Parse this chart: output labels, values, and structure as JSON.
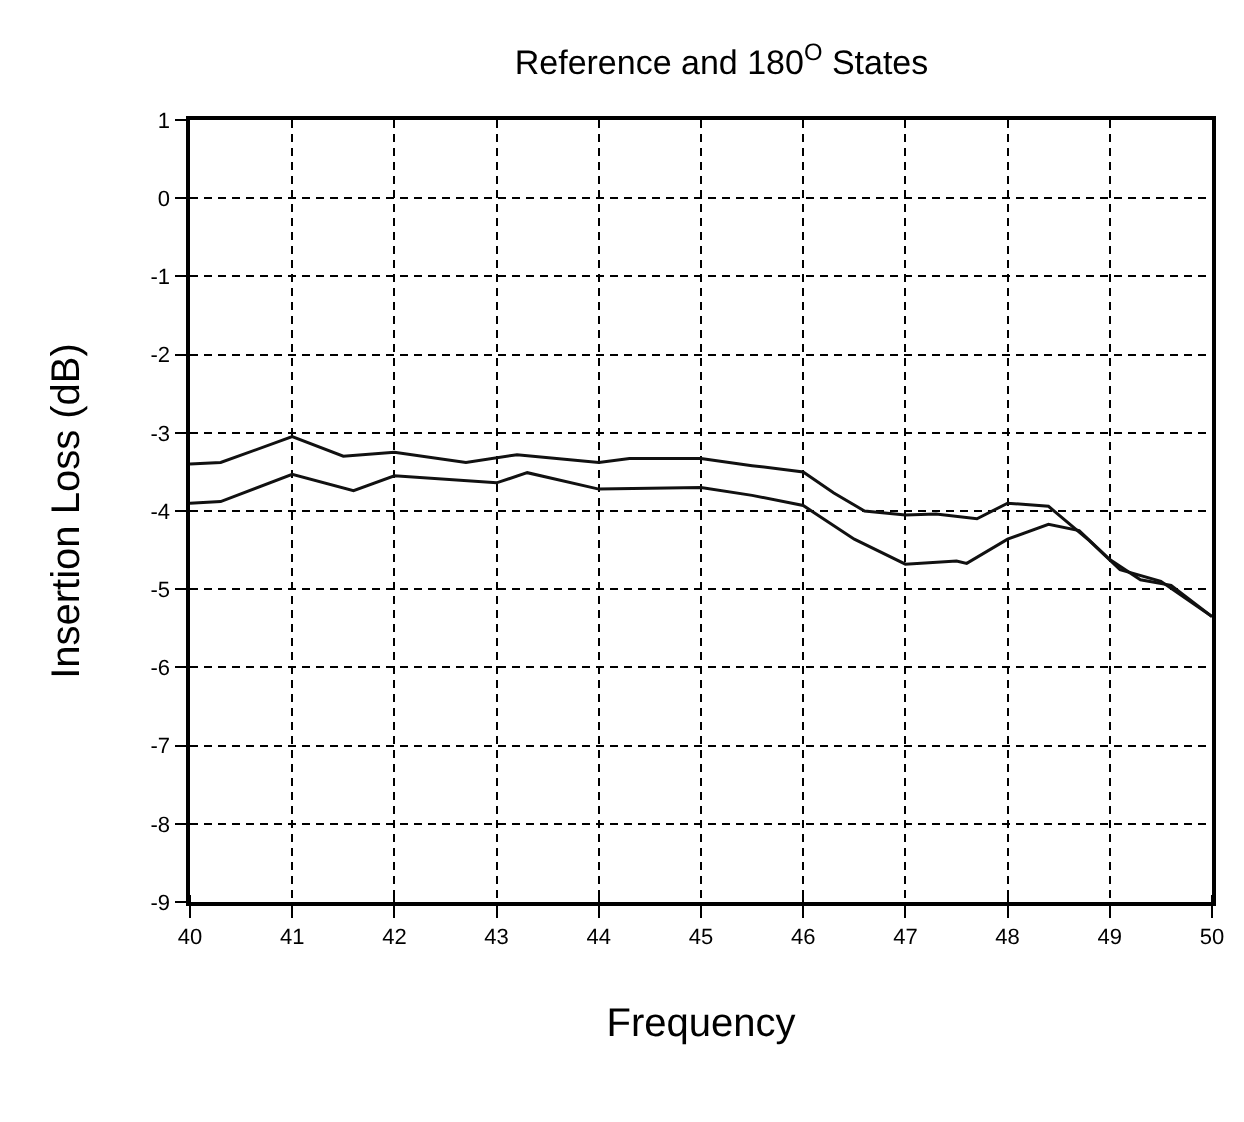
{
  "chart_data": {
    "type": "line",
    "title": "Reference and 180$^{O}$ States",
    "xlabel": "Frequency",
    "ylabel": "Insertion Loss (dB)",
    "series": [
      {
        "color": "#111111",
        "x": [
          40,
          40.3,
          41,
          41.5,
          42,
          42.7,
          43.2,
          44,
          44.3,
          45,
          45.5,
          46,
          46.3,
          46.6,
          47,
          47.3,
          47.7,
          48,
          48.4,
          48.8,
          49.1,
          49.5,
          50
        ],
        "values": [
          -3.4,
          -3.38,
          -3.05,
          -3.3,
          -3.25,
          -3.38,
          -3.28,
          -3.38,
          -3.33,
          -3.33,
          -3.42,
          -3.5,
          -3.77,
          -4.0,
          -4.05,
          -4.04,
          -4.1,
          -3.9,
          -3.94,
          -4.38,
          -4.75,
          -4.9,
          -5.35
        ]
      },
      {
        "color": "#111111",
        "x": [
          40,
          40.3,
          41,
          41.6,
          42,
          43,
          43.3,
          44,
          45,
          45.5,
          46,
          46.5,
          47,
          47.5,
          47.6,
          48,
          48.4,
          48.7,
          49,
          49.3,
          49.6,
          50
        ],
        "values": [
          -3.9,
          -3.88,
          -3.53,
          -3.74,
          -3.55,
          -3.64,
          -3.51,
          -3.72,
          -3.7,
          -3.8,
          -3.93,
          -4.36,
          -4.68,
          -4.64,
          -4.67,
          -4.36,
          -4.17,
          -4.25,
          -4.62,
          -4.88,
          -4.95,
          -5.35
        ]
      }
    ],
    "xlim": [
      40,
      50
    ],
    "xticks": [
      40,
      41,
      42,
      43,
      44,
      45,
      46,
      47,
      48,
      49,
      50
    ],
    "ylim": [
      -9,
      1
    ],
    "yticks": [
      -9,
      -8,
      -7,
      -6,
      -5,
      -4,
      -3,
      -2,
      -1,
      0,
      1
    ],
    "grid": true,
    "line_style": "solid",
    "marker": "none"
  }
}
